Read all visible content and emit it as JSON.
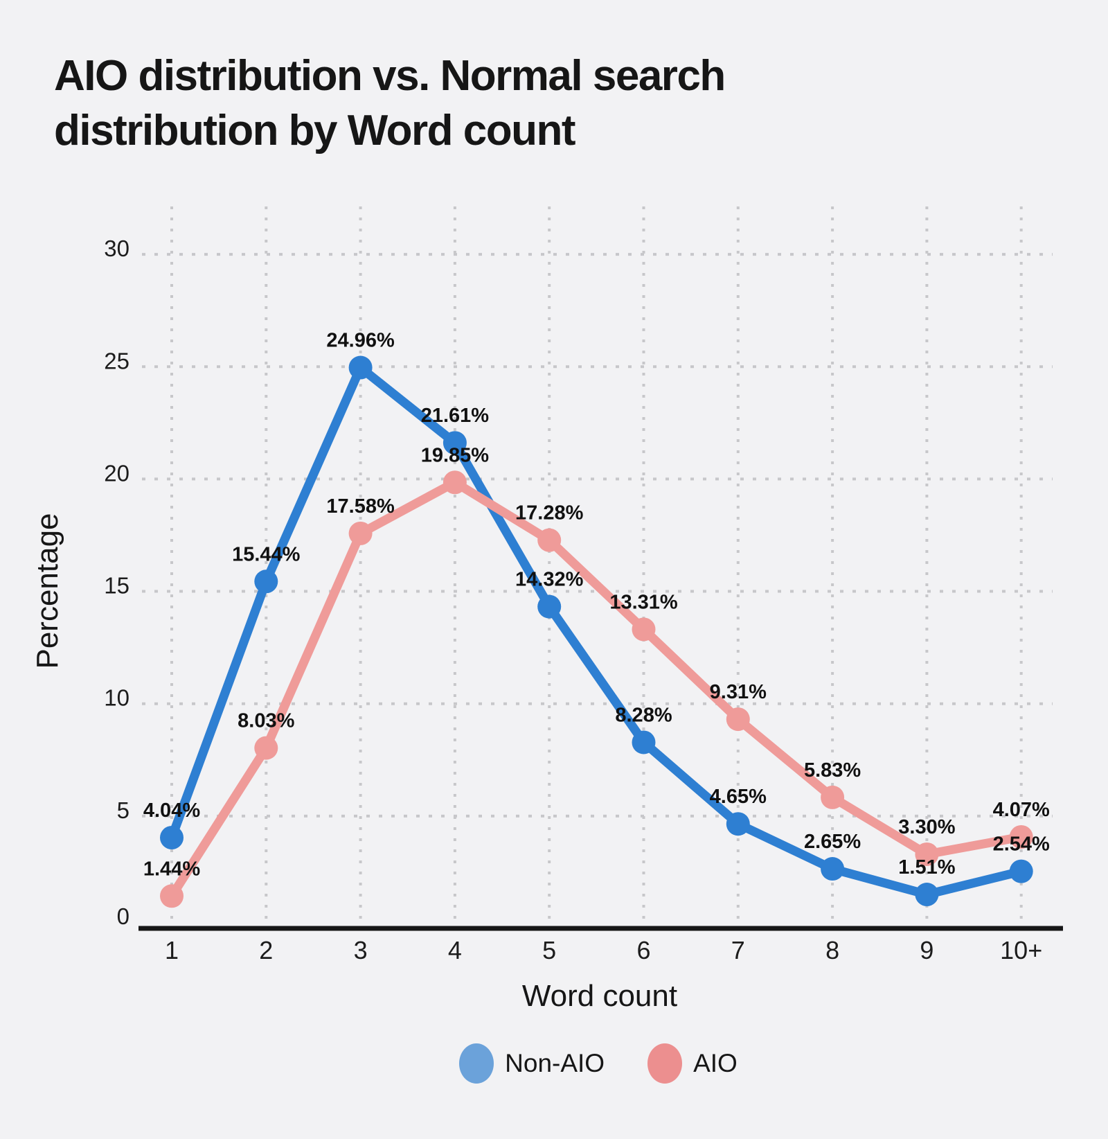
{
  "page": {
    "background": "#f2f2f4"
  },
  "chart_data": {
    "type": "line",
    "title": "AIO distribution vs. Normal search\ndistribution by Word count",
    "xlabel": "Word count",
    "ylabel": "Percentage",
    "categories": [
      "1",
      "2",
      "3",
      "4",
      "5",
      "6",
      "7",
      "8",
      "9",
      "10+"
    ],
    "series": [
      {
        "name": "Non-AIO",
        "color": "#2e7fd2",
        "legend_color": "#6ba2da",
        "values": [
          4.04,
          15.44,
          24.96,
          21.61,
          14.32,
          8.28,
          4.65,
          2.65,
          1.51,
          2.54
        ],
        "labels": [
          "4.04%",
          "15.44%",
          "24.96%",
          "21.61%",
          "14.32%",
          "8.28%",
          "4.65%",
          "2.65%",
          "1.51%",
          "2.54%"
        ]
      },
      {
        "name": "AIO",
        "color": "#ef9b99",
        "legend_color": "#ec8f8f",
        "values": [
          1.44,
          8.03,
          17.58,
          19.85,
          17.28,
          13.31,
          9.31,
          5.83,
          3.3,
          4.07
        ],
        "labels": [
          "1.44%",
          "8.03%",
          "17.58%",
          "19.85%",
          "17.28%",
          "13.31%",
          "9.31%",
          "5.83%",
          "3.30%",
          "4.07%"
        ]
      }
    ],
    "yticks": [
      0,
      5,
      10,
      15,
      20,
      25,
      30
    ],
    "ylim": [
      0,
      30
    ],
    "grid": "dotted",
    "legend_position": "bottom",
    "colors": {
      "grid": "#c7c7ca",
      "axis": "#161616",
      "tick_text": "#1c1c1c",
      "point_label": "#111111",
      "background": "#f2f2f4"
    }
  }
}
